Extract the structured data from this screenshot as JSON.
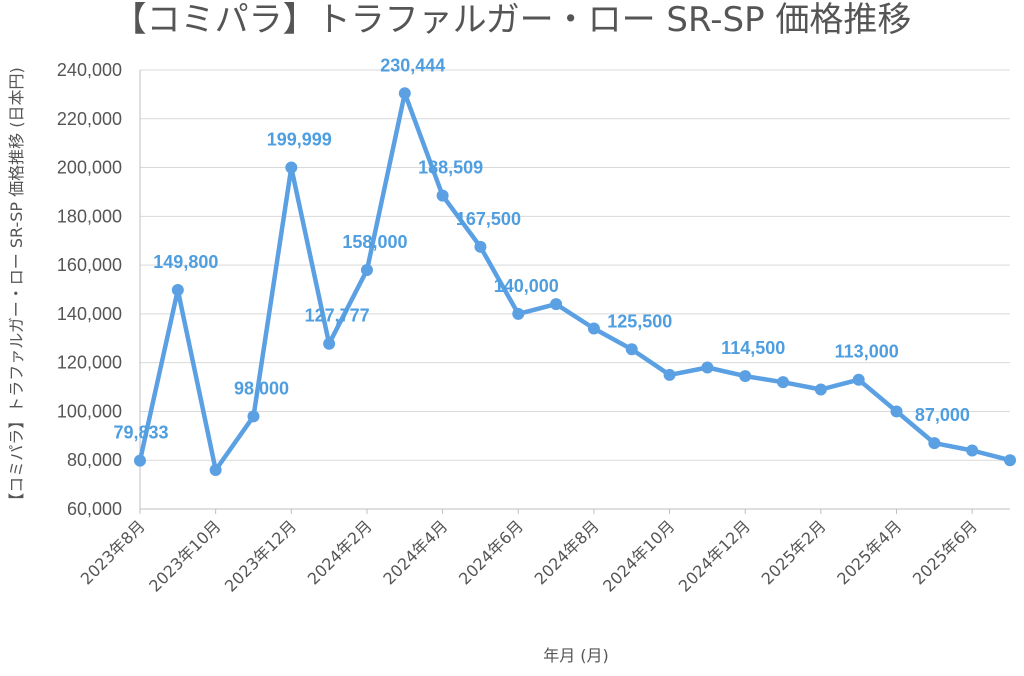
{
  "chart_data": {
    "type": "line",
    "title": "【コミパラ】トラファルガー・ロー SR-SP 価格推移",
    "xlabel": "年月 (月)",
    "ylabel": "【コミパラ】トラファルガー・ロー SR-SP 価格推移 (日本円)",
    "ylim": [
      60000,
      240000
    ],
    "yticks": [
      "60,000",
      "80,000",
      "100,000",
      "120,000",
      "140,000",
      "160,000",
      "180,000",
      "200,000",
      "220,000",
      "240,000"
    ],
    "grid": true,
    "color": "#5aa0e3",
    "x": [
      "2023年8月",
      "2023年9月",
      "2023年10月",
      "2023年11月",
      "2023年12月",
      "2024年1月",
      "2024年2月",
      "2024年3月",
      "2024年4月",
      "2024年5月",
      "2024年6月",
      "2024年7月",
      "2024年8月",
      "2024年9月",
      "2024年10月",
      "2024年11月",
      "2024年12月",
      "2025年1月",
      "2025年2月",
      "2025年3月",
      "2025年4月",
      "2025年5月",
      "2025年6月",
      "2025年7月"
    ],
    "x_tick_labels": [
      "2023年8月",
      "2023年10月",
      "2023年12月",
      "2024年2月",
      "2024年4月",
      "2024年6月",
      "2024年8月",
      "2024年10月",
      "2024年12月",
      "2025年2月",
      "2025年4月",
      "2025年6月"
    ],
    "values": [
      79833,
      149800,
      76000,
      98000,
      199999,
      127777,
      158000,
      230444,
      188509,
      167500,
      140000,
      144000,
      134000,
      125500,
      115000,
      118000,
      114500,
      112000,
      109000,
      113000,
      100000,
      87000,
      84000,
      80000
    ],
    "data_labels": [
      {
        "index": 0,
        "text": "79,833"
      },
      {
        "index": 1,
        "text": "149,800"
      },
      {
        "index": 3,
        "text": "98,000"
      },
      {
        "index": 4,
        "text": "199,999"
      },
      {
        "index": 5,
        "text": "127,777"
      },
      {
        "index": 6,
        "text": "158,000"
      },
      {
        "index": 7,
        "text": "230,444"
      },
      {
        "index": 8,
        "text": "188,509"
      },
      {
        "index": 9,
        "text": "167,500"
      },
      {
        "index": 10,
        "text": "140,000"
      },
      {
        "index": 13,
        "text": "125,500"
      },
      {
        "index": 16,
        "text": "114,500"
      },
      {
        "index": 19,
        "text": "113,000"
      },
      {
        "index": 21,
        "text": "87,000"
      }
    ]
  }
}
